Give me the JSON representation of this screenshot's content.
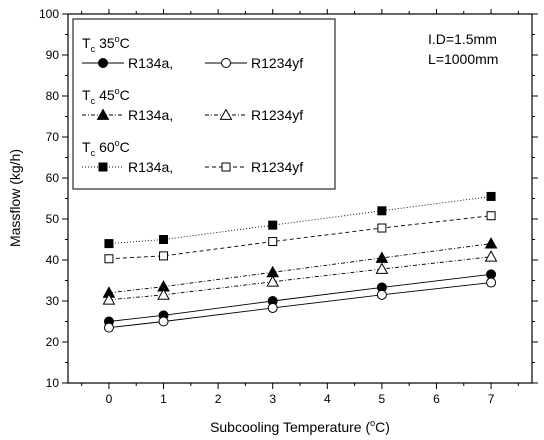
{
  "chart_data": {
    "type": "line",
    "xlabel": "Subcooling Temperature (",
    "xlabel_sup": "o",
    "xlabel_tail": "C)",
    "ylabel": "Massflow (kg/h)",
    "xlim": [
      -0.75,
      7.75
    ],
    "ylim": [
      10,
      100
    ],
    "x_ticks": [
      0,
      1,
      2,
      3,
      4,
      5,
      6,
      7
    ],
    "y_ticks": [
      10,
      20,
      30,
      40,
      50,
      60,
      70,
      80,
      90,
      100
    ],
    "x": [
      0,
      1,
      3,
      5,
      7
    ],
    "annotations": [
      "I.D=1.5mm",
      "L=1000mm"
    ],
    "legend_groups": [
      {
        "label": "T",
        "sub": "c",
        "temp": "35",
        "deg": "o",
        "unit": "C"
      },
      {
        "label": "T",
        "sub": "c",
        "temp": "45",
        "deg": "o",
        "unit": "C"
      },
      {
        "label": "T",
        "sub": "c",
        "temp": "60",
        "deg": "o",
        "unit": "C"
      }
    ],
    "series": [
      {
        "name": "R134a,",
        "group": 0,
        "marker": "circle",
        "filled": true,
        "dash": "solid",
        "values": [
          25.0,
          26.5,
          30.0,
          33.3,
          36.5
        ]
      },
      {
        "name": "R1234yf",
        "group": 0,
        "marker": "circle",
        "filled": false,
        "dash": "solid",
        "values": [
          23.5,
          25.0,
          28.3,
          31.5,
          34.5
        ]
      },
      {
        "name": "R134a,",
        "group": 1,
        "marker": "triangle",
        "filled": true,
        "dash": "dashdot",
        "values": [
          32.0,
          33.5,
          37.0,
          40.5,
          44.0
        ]
      },
      {
        "name": "R1234yf",
        "group": 1,
        "marker": "triangle",
        "filled": false,
        "dash": "dashdot",
        "values": [
          30.3,
          31.5,
          34.7,
          37.8,
          40.8
        ]
      },
      {
        "name": "R134a,",
        "group": 2,
        "marker": "square",
        "filled": true,
        "dash": "dotted",
        "values": [
          44.0,
          45.0,
          48.5,
          52.0,
          55.5
        ]
      },
      {
        "name": "R1234yf",
        "group": 2,
        "marker": "square",
        "filled": false,
        "dash": "dashed",
        "values": [
          40.3,
          41.0,
          44.5,
          47.8,
          50.8
        ]
      }
    ]
  }
}
